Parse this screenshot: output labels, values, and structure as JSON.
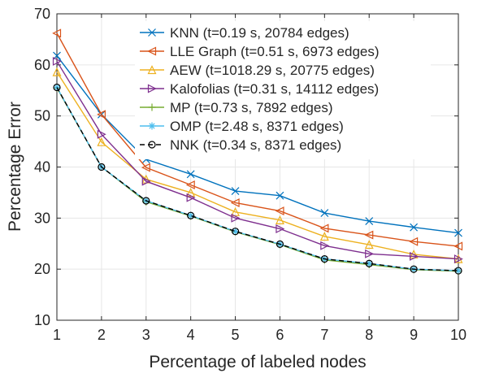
{
  "chart_data": {
    "type": "line",
    "xlabel": "Percentage of labeled nodes",
    "ylabel": "Percentage Error",
    "x": [
      1,
      2,
      3,
      4,
      5,
      6,
      7,
      8,
      9,
      10
    ],
    "xlim": [
      1,
      10
    ],
    "ylim": [
      10,
      70
    ],
    "xticks": [
      "1",
      "2",
      "3",
      "4",
      "5",
      "6",
      "7",
      "8",
      "9",
      "10"
    ],
    "yticks": [
      "10",
      "20",
      "30",
      "40",
      "50",
      "60",
      "70"
    ],
    "grid": true,
    "legend_position": "top-right",
    "series": [
      {
        "name": "KNN (t=0.19 s, 20784 edges)",
        "color": "#0072BD",
        "marker": "x",
        "dash": "solid",
        "values": [
          61.8,
          50.3,
          41.5,
          38.6,
          35.3,
          34.4,
          31.0,
          29.4,
          28.2,
          27.1
        ]
      },
      {
        "name": "LLE Graph (t=0.51 s, 6973 edges)",
        "color": "#D95319",
        "marker": "triangle-left",
        "dash": "solid",
        "values": [
          66.2,
          50.3,
          39.9,
          36.5,
          33.0,
          31.4,
          28.0,
          26.7,
          25.4,
          24.5
        ]
      },
      {
        "name": "AEW (t=1018.29 s, 20775 edges)",
        "color": "#EDB120",
        "marker": "triangle-up",
        "dash": "solid",
        "values": [
          58.6,
          44.9,
          37.6,
          35.0,
          31.2,
          29.6,
          26.4,
          24.8,
          22.9,
          22.0
        ]
      },
      {
        "name": "Kalofolias (t=0.31 s, 14112 edges)",
        "color": "#7E2F8E",
        "marker": "triangle-right",
        "dash": "solid",
        "values": [
          60.7,
          46.4,
          37.2,
          34.0,
          30.0,
          27.9,
          24.6,
          23.0,
          22.5,
          22.0
        ]
      },
      {
        "name": "MP (t=0.73 s, 7892 edges)",
        "color": "#77AC30",
        "marker": "plus",
        "dash": "solid",
        "values": [
          55.5,
          40.0,
          33.2,
          30.4,
          27.3,
          24.8,
          21.8,
          20.9,
          19.9,
          19.6
        ]
      },
      {
        "name": "OMP (t=2.48 s, 8371 edges)",
        "color": "#4DBEEE",
        "marker": "asterisk",
        "dash": "solid",
        "values": [
          55.6,
          40.0,
          33.4,
          30.5,
          27.4,
          24.9,
          22.0,
          21.1,
          20.0,
          19.7
        ]
      },
      {
        "name": "NNK (t=0.34 s, 8371 edges)",
        "color": "#000000",
        "marker": "circle",
        "dash": "dashed",
        "values": [
          55.6,
          40.0,
          33.4,
          30.5,
          27.4,
          24.9,
          22.0,
          21.1,
          20.0,
          19.7
        ]
      }
    ]
  }
}
